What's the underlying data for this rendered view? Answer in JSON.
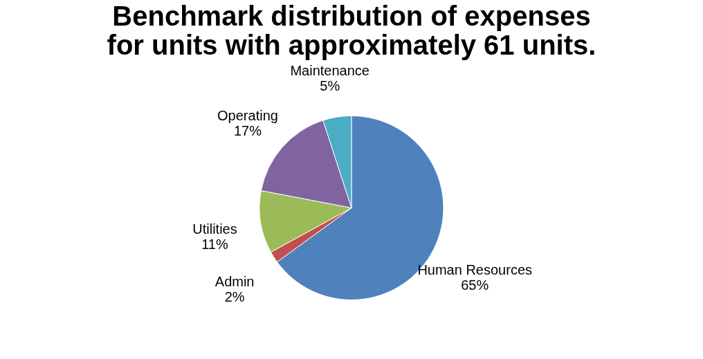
{
  "chart_data": {
    "type": "pie",
    "title": "Benchmark distribution of expenses for units with approximately 61 units.",
    "categories": [
      "Human Resources",
      "Admin",
      "Utilities",
      "Operating",
      "Maintenance"
    ],
    "values": [
      65,
      2,
      11,
      17,
      5
    ],
    "value_labels": [
      "65%",
      "2%",
      "11%",
      "17%",
      "5%"
    ],
    "colors": [
      "#4f81bd",
      "#c0504d",
      "#9bbb59",
      "#8064a2",
      "#4bacc6"
    ],
    "legend": false
  }
}
